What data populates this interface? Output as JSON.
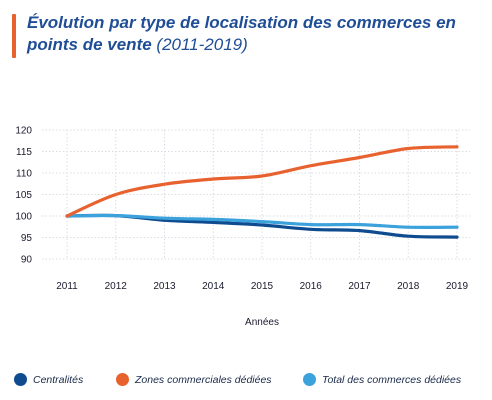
{
  "title": {
    "main": "Évolution par type de localisation des commerces en points de vente",
    "sub": "(2011-2019)"
  },
  "chart_data": {
    "type": "line",
    "x": [
      2011,
      2012,
      2013,
      2014,
      2015,
      2016,
      2017,
      2018,
      2019
    ],
    "xlabel": "Années",
    "ylabel": "",
    "ylim": [
      90,
      120
    ],
    "yticks": [
      90,
      95,
      100,
      105,
      110,
      115,
      120
    ],
    "grid": true,
    "legend_position": "bottom",
    "series": [
      {
        "name": "Centralités",
        "color": "#0f4c8f",
        "values": [
          100,
          100.1,
          99.0,
          98.5,
          97.9,
          96.9,
          96.6,
          95.3,
          95.1
        ]
      },
      {
        "name": "Zones commerciales dédiées",
        "color": "#e8622f",
        "values": [
          100,
          105,
          107.4,
          108.6,
          109.3,
          111.7,
          113.6,
          115.7,
          116.1
        ]
      },
      {
        "name": "Total des commerces dédiées",
        "color": "#3ca2dc",
        "values": [
          100,
          100.1,
          99.5,
          99.2,
          98.7,
          98.0,
          98.0,
          97.4,
          97.4
        ]
      }
    ]
  }
}
